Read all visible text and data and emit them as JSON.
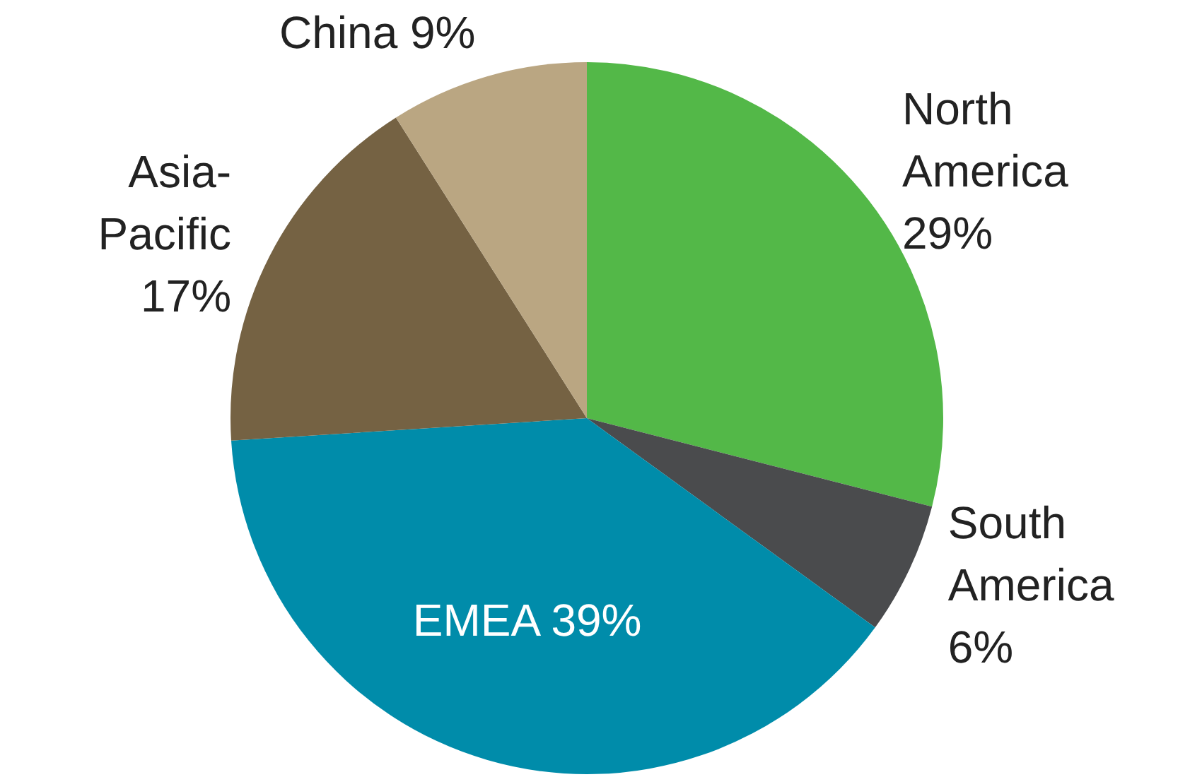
{
  "chart_data": {
    "type": "pie",
    "categories": [
      "North America",
      "South America",
      "EMEA",
      "Asia-Pacific",
      "China"
    ],
    "values": [
      29,
      6,
      39,
      17,
      9
    ],
    "value_labels": [
      "29%",
      "6%",
      "39%",
      "17%",
      "9%"
    ],
    "colors": [
      "#53b848",
      "#4a4b4d",
      "#008caa",
      "#756243",
      "#baa682"
    ],
    "legend": false
  }
}
